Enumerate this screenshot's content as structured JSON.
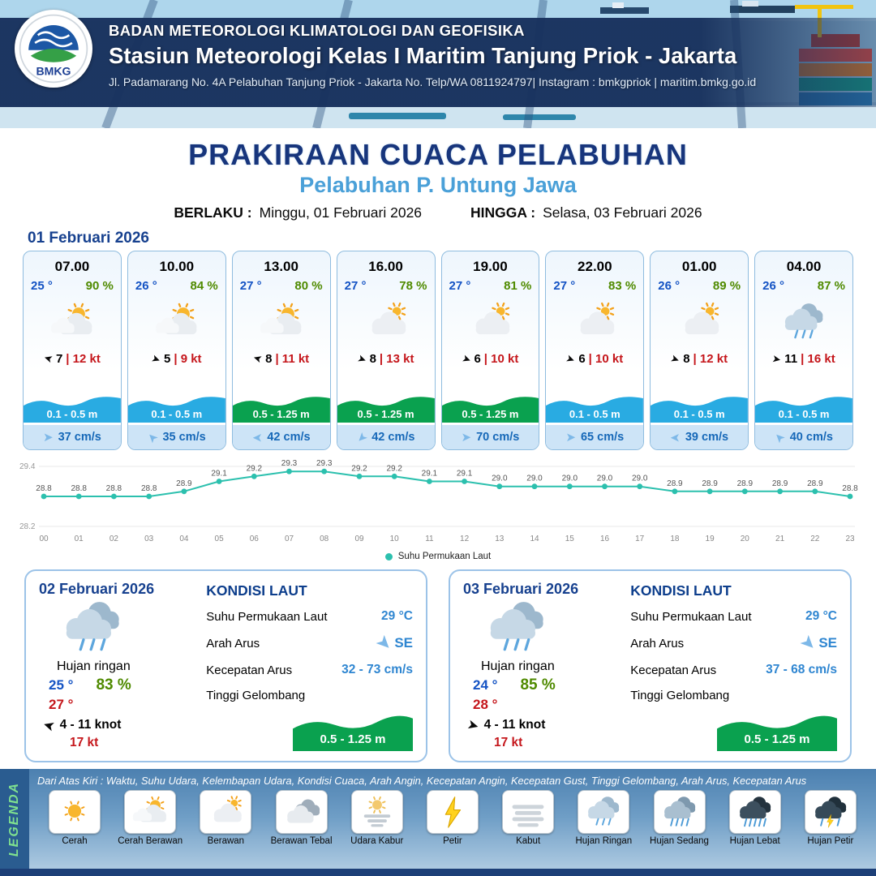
{
  "colors": {
    "temp_blue": "#1453c4",
    "rh_green": "#4f8a00",
    "gust_red": "#c5171c",
    "wave_blue": "#29abe2",
    "wave_green": "#0aa14f",
    "sky_light": "#7db8e8",
    "navy": "#17357c"
  },
  "header": {
    "logo_text": "BMKG",
    "agency": "BADAN METEOROLOGI KLIMATOLOGI DAN GEOFISIKA",
    "station": "Stasiun Meteorologi Kelas I Maritim Tanjung Priok - Jakarta",
    "address": "Jl. Padamarang No. 4A Pelabuhan Tanjung Priok - Jakarta No. Telp/WA 0811924797| Instagram : bmkgpriok | maritim.bmkg.go.id"
  },
  "title": {
    "main": "PRAKIRAAN CUACA PELABUHAN",
    "port": "Pelabuhan P. Untung Jawa",
    "valid_label": "BERLAKU :",
    "valid_value": "Minggu, 01 Februari 2026",
    "until_label": "HINGGA :",
    "until_value": "Selasa, 03 Februari 2026"
  },
  "day1": {
    "date": "01 Februari 2026",
    "slots": [
      {
        "time": "07.00",
        "temp": "25 °",
        "rh": "90 %",
        "icon": "cerah-berawan",
        "wind_deg": 197,
        "wind_speed": "7",
        "gust": "| 12 kt",
        "wave": "0.1 - 0.5 m",
        "wave_level": "low",
        "cur_deg": 0,
        "current": "37 cm/s"
      },
      {
        "time": "10.00",
        "temp": "26 °",
        "rh": "84 %",
        "icon": "cerah-berawan",
        "wind_deg": 20,
        "wind_speed": "5",
        "gust": "| 9 kt",
        "wave": "0.1 - 0.5 m",
        "wave_level": "low",
        "cur_deg": 225,
        "current": "35 cm/s"
      },
      {
        "time": "13.00",
        "temp": "27 °",
        "rh": "80 %",
        "icon": "cerah-berawan",
        "wind_deg": 197,
        "wind_speed": "8",
        "gust": "| 11 kt",
        "wave": "0.5 - 1.25 m",
        "wave_level": "mid",
        "cur_deg": 180,
        "current": "42 cm/s"
      },
      {
        "time": "16.00",
        "temp": "27 °",
        "rh": "78 %",
        "icon": "berawan",
        "wind_deg": 20,
        "wind_speed": "8",
        "gust": "| 13 kt",
        "wave": "0.5 - 1.25 m",
        "wave_level": "mid",
        "cur_deg": 135,
        "current": "42 cm/s"
      },
      {
        "time": "19.00",
        "temp": "27 °",
        "rh": "81 %",
        "icon": "berawan",
        "wind_deg": 20,
        "wind_speed": "6",
        "gust": "| 10 kt",
        "wave": "0.5 - 1.25 m",
        "wave_level": "mid",
        "cur_deg": 0,
        "current": "70 cm/s"
      },
      {
        "time": "22.00",
        "temp": "27 °",
        "rh": "83 %",
        "icon": "berawan",
        "wind_deg": 20,
        "wind_speed": "6",
        "gust": "| 10 kt",
        "wave": "0.1 - 0.5 m",
        "wave_level": "low",
        "cur_deg": 0,
        "current": "65 cm/s"
      },
      {
        "time": "01.00",
        "temp": "26 °",
        "rh": "89 %",
        "icon": "berawan",
        "wind_deg": 20,
        "wind_speed": "8",
        "gust": "| 12 kt",
        "wave": "0.1 - 0.5 m",
        "wave_level": "low",
        "cur_deg": 180,
        "current": "39 cm/s"
      },
      {
        "time": "04.00",
        "temp": "26 °",
        "rh": "87 %",
        "icon": "hujan-ringan",
        "wind_deg": 10,
        "wind_speed": "11",
        "gust": "| 16 kt",
        "wave": "0.1 - 0.5 m",
        "wave_level": "low",
        "cur_deg": 225,
        "current": "40 cm/s"
      }
    ]
  },
  "chart_data": {
    "type": "line",
    "series_name": "Suhu Permukaan Laut",
    "x": [
      "00",
      "01",
      "02",
      "03",
      "04",
      "05",
      "06",
      "07",
      "08",
      "09",
      "10",
      "11",
      "12",
      "13",
      "14",
      "15",
      "16",
      "17",
      "18",
      "19",
      "20",
      "21",
      "22",
      "23"
    ],
    "values": [
      28.8,
      28.8,
      28.8,
      28.8,
      28.9,
      29.1,
      29.2,
      29.3,
      29.3,
      29.2,
      29.2,
      29.1,
      29.1,
      29.0,
      29.0,
      29.0,
      29.0,
      29.0,
      28.9,
      28.9,
      28.9,
      28.9,
      28.9,
      28.8
    ],
    "ylim": [
      28.2,
      29.4
    ],
    "line_color": "#2cc0ae",
    "grid": true,
    "legend_position": "bottom"
  },
  "days": [
    {
      "date": "02 Februari 2026",
      "icon": "hujan-ringan",
      "desc": "Hujan ringan",
      "tmin": "25 °",
      "rh": "83 %",
      "tmax": "27 °",
      "wind_deg": 197,
      "wind": "4 - 11 knot",
      "gust": "17 kt",
      "sea_title": "KONDISI LAUT",
      "sst_label": "Suhu Permukaan Laut",
      "sst": "29 °C",
      "dir_label": "Arah Arus",
      "dir": "SE",
      "dir_deg": 45,
      "spd_label": "Kecepatan Arus",
      "spd": "32 - 73 cm/s",
      "wave_label": "Tinggi Gelombang",
      "wave": "0.5 - 1.25 m"
    },
    {
      "date": "03 Februari 2026",
      "icon": "hujan-ringan",
      "desc": "Hujan ringan",
      "tmin": "24 °",
      "rh": "85 %",
      "tmax": "28 °",
      "wind_deg": 15,
      "wind": "4 - 11 knot",
      "gust": "17 kt",
      "sea_title": "KONDISI LAUT",
      "sst_label": "Suhu Permukaan Laut",
      "sst": "29 °C",
      "dir_label": "Arah Arus",
      "dir": "SE",
      "dir_deg": 45,
      "spd_label": "Kecepatan Arus",
      "spd": "37 - 68 cm/s",
      "wave_label": "Tinggi Gelombang",
      "wave": "0.5 - 1.25 m"
    }
  ],
  "legend": {
    "title": "LEGENDA",
    "note": "Dari Atas Kiri : Waktu, Suhu Udara, Kelembapan Udara, Kondisi Cuaca, Arah Angin, Kecepatan Angin, Kecepatan Gust, Tinggi Gelombang, Arah Arus, Kecepatan Arus",
    "items": [
      {
        "label": "Cerah",
        "icon": "cerah"
      },
      {
        "label": "Cerah Berawan",
        "icon": "cerah-berawan"
      },
      {
        "label": "Berawan",
        "icon": "berawan"
      },
      {
        "label": "Berawan Tebal",
        "icon": "berawan-tebal"
      },
      {
        "label": "Udara Kabur",
        "icon": "udara-kabur"
      },
      {
        "label": "Petir",
        "icon": "petir"
      },
      {
        "label": "Kabut",
        "icon": "kabut"
      },
      {
        "label": "Hujan Ringan",
        "icon": "hujan-ringan"
      },
      {
        "label": "Hujan Sedang",
        "icon": "hujan-sedang"
      },
      {
        "label": "Hujan Lebat",
        "icon": "hujan-lebat"
      },
      {
        "label": "Hujan Petir",
        "icon": "hujan-petir"
      }
    ]
  }
}
